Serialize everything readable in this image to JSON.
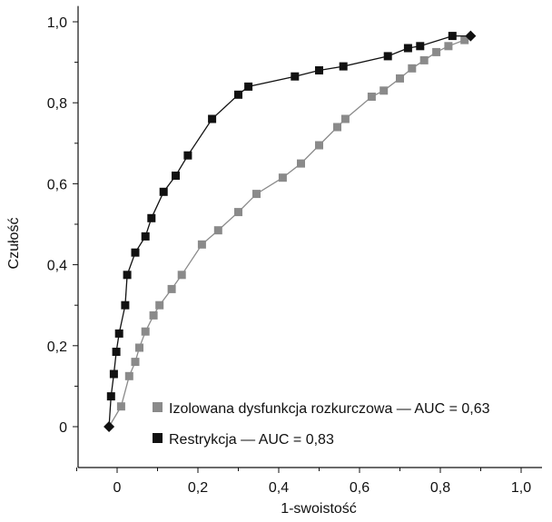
{
  "chart_data": {
    "type": "line",
    "xlabel": "1-swoistość",
    "ylabel": "Czułość",
    "xlim": [
      -0.1,
      1.05
    ],
    "ylim": [
      -0.08,
      1.03
    ],
    "x_ticks": [
      "0",
      "0,2",
      "0,4",
      "0,6",
      "0,8",
      "1,0"
    ],
    "y_ticks": [
      "0",
      "0,2",
      "0,4",
      "0,6",
      "0,8",
      "1,0"
    ],
    "grid": false,
    "legend_position": "bottom-right",
    "endpoints": {
      "start": [
        -0.02,
        0.0
      ],
      "end": [
        0.875,
        0.965
      ]
    },
    "series": [
      {
        "name": "Izolowana dysfunkcja rozkurczowa — AUC = 0,63",
        "color": "#8a8a8a",
        "x": [
          0.01,
          0.03,
          0.045,
          0.055,
          0.07,
          0.09,
          0.105,
          0.135,
          0.16,
          0.21,
          0.25,
          0.3,
          0.345,
          0.41,
          0.455,
          0.5,
          0.545,
          0.565,
          0.63,
          0.66,
          0.7,
          0.73,
          0.76,
          0.79,
          0.82,
          0.86
        ],
        "y": [
          0.05,
          0.125,
          0.16,
          0.195,
          0.235,
          0.275,
          0.3,
          0.34,
          0.375,
          0.45,
          0.485,
          0.53,
          0.575,
          0.615,
          0.65,
          0.695,
          0.74,
          0.76,
          0.815,
          0.83,
          0.86,
          0.885,
          0.905,
          0.925,
          0.94,
          0.955
        ]
      },
      {
        "name": "Restrykcja — AUC = 0,83",
        "color": "#111111",
        "x": [
          -0.015,
          -0.008,
          -0.002,
          0.005,
          0.02,
          0.025,
          0.045,
          0.07,
          0.085,
          0.115,
          0.145,
          0.175,
          0.235,
          0.3,
          0.325,
          0.44,
          0.5,
          0.56,
          0.67,
          0.72,
          0.75,
          0.83
        ],
        "y": [
          0.075,
          0.13,
          0.185,
          0.23,
          0.3,
          0.375,
          0.43,
          0.47,
          0.515,
          0.58,
          0.62,
          0.67,
          0.76,
          0.82,
          0.84,
          0.865,
          0.88,
          0.89,
          0.915,
          0.935,
          0.94,
          0.965
        ]
      }
    ]
  }
}
